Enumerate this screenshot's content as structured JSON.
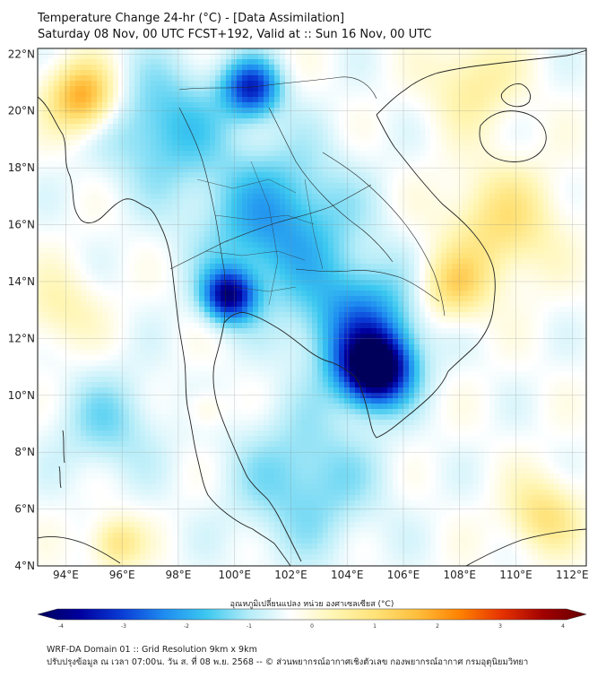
{
  "title": {
    "line1": "Temperature Change 24-hr (°C) - [Data Assimilation]",
    "line2": "Saturday 08 Nov, 00 UTC FCST+192, Valid at :: Sun 16 Nov, 00 UTC"
  },
  "map": {
    "lat_ticks": [
      "22°N",
      "20°N",
      "18°N",
      "16°N",
      "14°N",
      "12°N",
      "10°N",
      "8°N",
      "6°N",
      "4°N"
    ],
    "lon_ticks": [
      "94°E",
      "96°E",
      "98°E",
      "100°E",
      "102°E",
      "104°E",
      "106°E",
      "108°E",
      "110°E",
      "112°E"
    ],
    "extent": {
      "lon": [
        93,
        112.5
      ],
      "lat": [
        4,
        22.2
      ]
    },
    "field_blobs": [
      {
        "lon": 105.0,
        "lat": 10.9,
        "value": -4.0,
        "spread": 1.2
      },
      {
        "lon": 99.8,
        "lat": 13.5,
        "value": -3.0,
        "spread": 0.9
      },
      {
        "lon": 100.6,
        "lat": 20.8,
        "value": -2.5,
        "spread": 1.0
      },
      {
        "lon": 101.5,
        "lat": 16.0,
        "value": -1.6,
        "spread": 2.6
      },
      {
        "lon": 104.5,
        "lat": 12.5,
        "value": -1.8,
        "spread": 2.0
      },
      {
        "lon": 97.5,
        "lat": 19.5,
        "value": -1.2,
        "spread": 2.2
      },
      {
        "lon": 102.5,
        "lat": 7.0,
        "value": -1.0,
        "spread": 2.5
      },
      {
        "lon": 95.5,
        "lat": 9.0,
        "value": -0.8,
        "spread": 1.8
      },
      {
        "lon": 94.6,
        "lat": 20.5,
        "value": 2.2,
        "spread": 1.2
      },
      {
        "lon": 109.5,
        "lat": 16.0,
        "value": 1.2,
        "spread": 2.0
      },
      {
        "lon": 108.5,
        "lat": 21.0,
        "value": 0.9,
        "spread": 1.6
      },
      {
        "lon": 107.8,
        "lat": 13.8,
        "value": 1.3,
        "spread": 1.2
      },
      {
        "lon": 111.0,
        "lat": 5.8,
        "value": 1.2,
        "spread": 1.3
      },
      {
        "lon": 95.8,
        "lat": 4.8,
        "value": 1.2,
        "spread": 0.9
      },
      {
        "lon": 93.8,
        "lat": 13.0,
        "value": 0.7,
        "spread": 1.4
      },
      {
        "lon": 99.0,
        "lat": 9.5,
        "value": 0.5,
        "spread": 0.7
      }
    ]
  },
  "colorbar": {
    "title": "อุณหภูมิเปลี่ยนแปลง หน่วย องศาเซลเซียส (°C)",
    "ticks": [
      "-4",
      "-3",
      "-2",
      "-1",
      "0",
      "1",
      "2",
      "3",
      "4"
    ],
    "colors": [
      "#00005a",
      "#00009e",
      "#0a3cd6",
      "#1e8cf0",
      "#3cc8f0",
      "#b4ecf8",
      "#ffffff",
      "#fff6b4",
      "#ffe278",
      "#ffbe3c",
      "#ff8200",
      "#e63200",
      "#a00000",
      "#640000"
    ]
  },
  "footer": {
    "line1": "WRF-DA Domain 01 :: Grid Resolution 9km x 9km",
    "line2": "ปรับปรุงข้อมูล ณ เวลา 07:00น. วัน ส. ที่ 08 พ.ย. 2568 -- © ส่วนพยากรณ์อากาศเชิงตัวเลข กองพยากรณ์อากาศ กรมอุตุนิยมวิทยา"
  }
}
